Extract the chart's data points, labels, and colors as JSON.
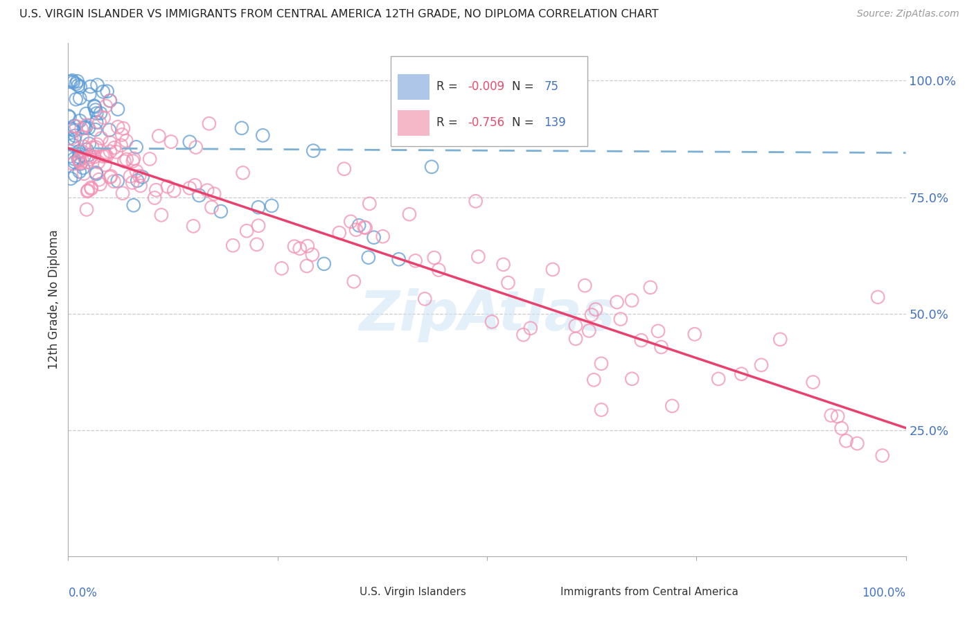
{
  "title": "U.S. VIRGIN ISLANDER VS IMMIGRANTS FROM CENTRAL AMERICA 12TH GRADE, NO DIPLOMA CORRELATION CHART",
  "source": "Source: ZipAtlas.com",
  "ylabel": "12th Grade, No Diploma",
  "legend1_color": "#aec6e8",
  "legend2_color": "#f4b8c8",
  "scatter1_color": "#5b9bd5",
  "scatter2_color": "#f48fb1",
  "trendline1_color": "#7bafd4",
  "trendline2_color": "#e8416e",
  "grid_color": "#cccccc",
  "background_color": "#ffffff",
  "watermark": "ZipAtlas",
  "xlim": [
    0.0,
    1.0
  ],
  "ylim": [
    -0.02,
    1.08
  ],
  "blue_trendline_y0": 0.855,
  "blue_trendline_y1": 0.845,
  "pink_trendline_y0": 0.855,
  "pink_trendline_y1": 0.255
}
